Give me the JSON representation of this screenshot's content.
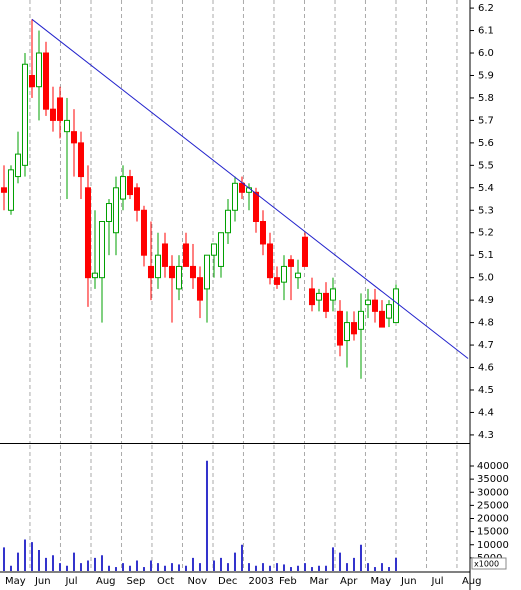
{
  "chart_data": [
    {
      "type": "candlestick",
      "xlim": [
        -0.57,
        66.43
      ],
      "ylim": [
        4.264,
        6.236
      ],
      "yticks": [
        4.3,
        4.4,
        4.5,
        4.6,
        4.7,
        4.8,
        4.9,
        {
          "value": 5,
          "label": "5.0"
        },
        5.1,
        5.2,
        5.3,
        5.4,
        5.5,
        5.6,
        5.7,
        5.8,
        5.9,
        {
          "value": 6,
          "label": "6.0"
        },
        6.1,
        6.2
      ],
      "up_color": "#00a000",
      "down_color": "#ff0000",
      "open": [
        5.4,
        5.3,
        5.45,
        5.5,
        5.9,
        5.85,
        6.0,
        5.75,
        5.8,
        5.65,
        5.65,
        5.6,
        5.4,
        5.0,
        5.0,
        5.25,
        5.2,
        5.35,
        5.45,
        5.4,
        5.3,
        5.05,
        5.0,
        5.15,
        5.05,
        4.95,
        5.15,
        5.05,
        5.0,
        4.95,
        5.1,
        5.05,
        5.2,
        5.3,
        5.42,
        5.38,
        5.38,
        5.25,
        5.15,
        5.0,
        4.98,
        5.08,
        5.0,
        5.18,
        4.95,
        4.9,
        4.93,
        4.9,
        4.85,
        4.72,
        4.8,
        4.77,
        4.88,
        4.9,
        4.85,
        4.82,
        4.8
      ],
      "high": [
        5.5,
        5.5,
        5.65,
        6.0,
        6.15,
        6.1,
        6.05,
        5.85,
        5.85,
        5.8,
        5.75,
        5.65,
        5.5,
        5.3,
        5.25,
        5.35,
        5.45,
        5.5,
        5.48,
        5.42,
        5.32,
        5.25,
        5.2,
        5.2,
        5.1,
        5.1,
        5.2,
        5.15,
        5.05,
        5.1,
        5.15,
        5.2,
        5.35,
        5.45,
        5.45,
        5.42,
        5.4,
        5.3,
        5.2,
        5.05,
        5.1,
        5.1,
        5.08,
        5.2,
        5.0,
        4.95,
        4.98,
        5.0,
        4.9,
        4.85,
        4.85,
        4.93,
        4.95,
        4.95,
        4.9,
        4.9,
        4.97
      ],
      "low": [
        5.3,
        5.28,
        5.42,
        5.45,
        5.8,
        5.7,
        5.72,
        5.65,
        5.62,
        5.35,
        5.45,
        5.35,
        4.87,
        4.95,
        4.8,
        5.1,
        5.1,
        5.3,
        5.35,
        5.25,
        5.05,
        4.9,
        4.95,
        5.0,
        4.8,
        4.9,
        5.05,
        4.95,
        4.82,
        4.8,
        5.0,
        5.0,
        5.15,
        5.25,
        5.35,
        5.3,
        5.2,
        5.1,
        4.97,
        4.95,
        4.9,
        4.9,
        4.95,
        5.05,
        4.85,
        4.85,
        4.82,
        4.85,
        4.65,
        4.6,
        4.72,
        4.55,
        4.82,
        4.8,
        4.78,
        4.78,
        4.8
      ],
      "close": [
        5.38,
        5.48,
        5.55,
        5.95,
        5.85,
        6.0,
        5.75,
        5.7,
        5.7,
        5.7,
        5.6,
        5.45,
        5.0,
        5.02,
        5.25,
        5.33,
        5.4,
        5.45,
        5.37,
        5.3,
        5.1,
        5.0,
        5.1,
        5.05,
        5.0,
        5.05,
        5.05,
        5.0,
        4.9,
        5.1,
        5.15,
        5.2,
        5.3,
        5.42,
        5.38,
        5.4,
        5.25,
        5.15,
        5.0,
        4.97,
        5.05,
        5.05,
        5.02,
        5.05,
        4.88,
        4.93,
        4.85,
        4.95,
        4.7,
        4.8,
        4.75,
        4.85,
        4.9,
        4.85,
        4.78,
        4.88,
        4.95
      ],
      "trendline": {
        "x": [
          4,
          66.3
        ],
        "y": [
          6.15,
          4.64
        ],
        "color": "#2222cc"
      }
    },
    {
      "type": "bar",
      "xlim": [
        -0.57,
        66.43
      ],
      "ylim": [
        0,
        48000
      ],
      "yticks": [
        5000,
        10000,
        15000,
        20000,
        25000,
        30000,
        35000,
        40000
      ],
      "annotation": "x1000",
      "color": "#3333cc",
      "values": [
        9000,
        2000,
        7000,
        12000,
        11000,
        8000,
        5000,
        6000,
        3000,
        2000,
        7000,
        3000,
        4000,
        5000,
        6000,
        2000,
        1500,
        3000,
        2000,
        4000,
        1500,
        4000,
        3000,
        2000,
        3000,
        2500,
        2000,
        5000,
        3000,
        42000,
        4000,
        5000,
        3000,
        7000,
        10000,
        3000,
        2000,
        3000,
        2000,
        3000,
        2500,
        1500,
        2000,
        3000,
        1500,
        2000,
        2000,
        9000,
        7000,
        3000,
        5000,
        10000,
        3000,
        1500,
        3000,
        1500,
        5000
      ],
      "xticks": [
        {
          "value": -0.63,
          "label": "May"
        },
        {
          "value": 3.71,
          "label": "Jun"
        },
        {
          "value": 8.07,
          "label": "Jul"
        },
        {
          "value": 12.43,
          "label": "Aug"
        },
        {
          "value": 16.79,
          "label": "Sep"
        },
        {
          "value": 21.14,
          "label": "Oct"
        },
        {
          "value": 25.5,
          "label": "Nov"
        },
        {
          "value": 29.86,
          "label": "Dec"
        },
        {
          "value": 34.21,
          "label": "2003"
        },
        {
          "value": 38.57,
          "label": "Feb"
        },
        {
          "value": 42.93,
          "label": "Mar"
        },
        {
          "value": 47.29,
          "label": "Apr"
        },
        {
          "value": 51.64,
          "label": "May"
        },
        {
          "value": 56,
          "label": "Jun"
        },
        {
          "value": 60.36,
          "label": "Jul"
        },
        {
          "value": 64.71,
          "label": "Aug"
        }
      ]
    }
  ]
}
